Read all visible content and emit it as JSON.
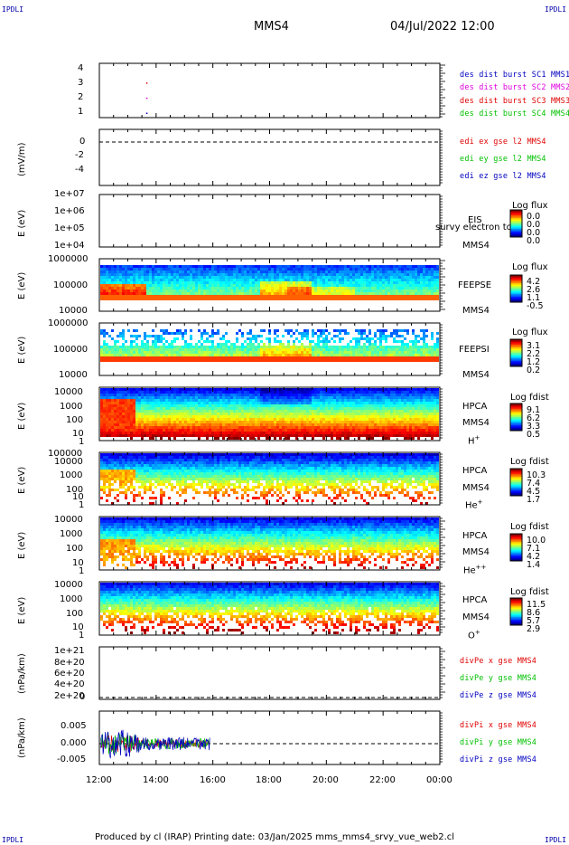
{
  "header": {
    "corner_label": "IPDLI",
    "spacecraft": "MMS4",
    "datetime": "04/Jul/2022 12:00"
  },
  "footer": {
    "text": "Produced by cl (IRAP)   Printing date: 03/Jan/2025   mms_mms4_srvy_vue_web2.cl"
  },
  "colors": {
    "red": "#e00000",
    "green": "#00c000",
    "blue": "#0000c0",
    "magenta": "#e000e0"
  },
  "time_axis": [
    "12:00",
    "14:00",
    "16:00",
    "18:00",
    "20:00",
    "22:00",
    "00:00"
  ],
  "chart_data": [
    {
      "type": "scatter",
      "panel": "des-dist-burst",
      "yticks": [
        "4",
        "3",
        "2",
        "1"
      ],
      "series": [
        {
          "name": "des dist burst SC1 MMS1",
          "color": "#0000c0",
          "points": [
            [
              13.65,
              1.0
            ]
          ]
        },
        {
          "name": "des dist burst SC2 MMS2",
          "color": "#e000e0",
          "points": [
            [
              13.65,
              2.0
            ]
          ]
        },
        {
          "name": "des dist burst SC3 MMS3",
          "color": "#e00000",
          "points": [
            [
              13.65,
              3.0
            ]
          ]
        },
        {
          "name": "des dist burst SC4 MMS4",
          "color": "#00c000",
          "points": []
        }
      ]
    },
    {
      "type": "line",
      "panel": "edi-e",
      "ylabel": "(mV/m)",
      "yticks": [
        "0",
        "-2",
        "-4"
      ],
      "series": [
        {
          "name": "edi ex gse l2 MMS4",
          "color": "#e00000",
          "values": []
        },
        {
          "name": "edi ey gse l2 MMS4",
          "color": "#00c000",
          "values": []
        },
        {
          "name": "edi ez gse l2 MMS4",
          "color": "#0000c0",
          "values": []
        }
      ]
    },
    {
      "type": "heatmap",
      "panel": "eis",
      "ylabel": "E (eV)",
      "yticks": [
        "1e+07",
        "1e+06",
        "1e+05",
        "1e+04"
      ],
      "right_labels": [
        "EIS",
        "MMS4"
      ],
      "overlay_text": "survy electron to",
      "colorbar": {
        "title": "Log flux",
        "ticks": [
          "0.0",
          "0.0",
          "0.0",
          "0.0"
        ]
      }
    },
    {
      "type": "heatmap",
      "panel": "feepse",
      "ylabel": "E (eV)",
      "yticks": [
        "1000000",
        "100000",
        "10000"
      ],
      "right_labels": [
        "FEEPSE",
        "MMS4"
      ],
      "colorbar": {
        "title": "Log flux",
        "ticks": [
          "4.2",
          "2.6",
          "1.1",
          "-0.5"
        ]
      }
    },
    {
      "type": "heatmap",
      "panel": "feepsi",
      "ylabel": "E (eV)",
      "yticks": [
        "1000000",
        "100000",
        "10000"
      ],
      "right_labels": [
        "FEEPSI",
        "MMS4"
      ],
      "colorbar": {
        "title": "Log flux",
        "ticks": [
          "3.1",
          "2.2",
          "1.2",
          "0.2"
        ]
      }
    },
    {
      "type": "heatmap",
      "panel": "hpca-h",
      "ylabel": "E (eV)",
      "yticks": [
        "10000",
        "1000",
        "100",
        "10",
        "1"
      ],
      "right_labels": [
        "HPCA",
        "MMS4"
      ],
      "species": "H",
      "charge": "+",
      "colorbar": {
        "title": "Log fdist",
        "ticks": [
          "9.1",
          "6.2",
          "3.3",
          "0.5"
        ]
      }
    },
    {
      "type": "heatmap",
      "panel": "hpca-he",
      "ylabel": "E (eV)",
      "yticks": [
        "100000",
        "10000",
        "1000",
        "100",
        "10",
        "1"
      ],
      "right_labels": [
        "HPCA",
        "MMS4"
      ],
      "species": "He",
      "charge": "+",
      "colorbar": {
        "title": "Log fdist",
        "ticks": [
          "10.3",
          "7.4",
          "4.5",
          "1.7"
        ]
      }
    },
    {
      "type": "heatmap",
      "panel": "hpca-hepp",
      "ylabel": "E (eV)",
      "yticks": [
        "10000",
        "1000",
        "100",
        "10",
        "1"
      ],
      "right_labels": [
        "HPCA",
        "MMS4"
      ],
      "species": "He",
      "charge": "++",
      "colorbar": {
        "title": "Log fdist",
        "ticks": [
          "10.0",
          "7.1",
          "4.2",
          "1.4"
        ]
      }
    },
    {
      "type": "heatmap",
      "panel": "hpca-o",
      "ylabel": "E (eV)",
      "yticks": [
        "10000",
        "1000",
        "100",
        "10",
        "1"
      ],
      "right_labels": [
        "HPCA",
        "MMS4"
      ],
      "species": "O",
      "charge": "+",
      "colorbar": {
        "title": "Log fdist",
        "ticks": [
          "11.5",
          "8.6",
          "5.7",
          "2.9"
        ]
      }
    },
    {
      "type": "line",
      "panel": "divpe",
      "ylabel": "(nPa/km)",
      "yticks": [
        "1e+21",
        "8e+20",
        "6e+20",
        "4e+20",
        "2e+20",
        "0"
      ],
      "series": [
        {
          "name": "divPe x gse MMS4",
          "color": "#e00000",
          "values": []
        },
        {
          "name": "divPe y gse MMS4",
          "color": "#00c000",
          "values": []
        },
        {
          "name": "divPe z gse MMS4",
          "color": "#0000c0",
          "values": []
        }
      ]
    },
    {
      "type": "line",
      "panel": "divpi",
      "ylabel": "(nPa/km)",
      "yticks": [
        "0.005",
        "0.000",
        "-0.005"
      ],
      "series": [
        {
          "name": "divPi x gse MMS4",
          "color": "#e00000"
        },
        {
          "name": "divPi y gse MMS4",
          "color": "#00c000"
        },
        {
          "name": "divPi z gse MMS4",
          "color": "#0000c0"
        }
      ]
    }
  ]
}
